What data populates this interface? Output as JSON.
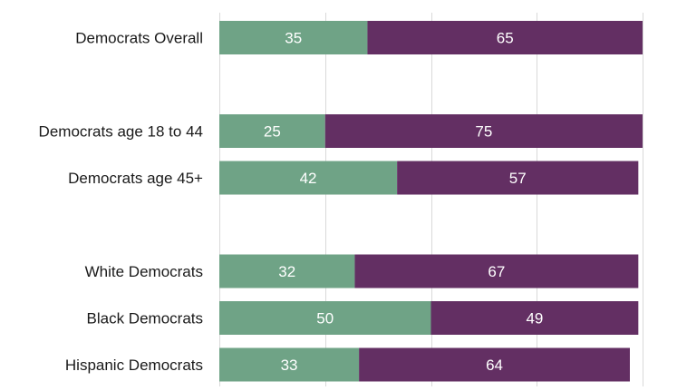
{
  "chart_data": {
    "type": "bar",
    "orientation": "horizontal",
    "stacked": true,
    "categories": [
      "Democrats Overall",
      "",
      "Democrats age 18 to 44",
      "Democrats age 45+",
      "",
      "White Democrats",
      "Black Democrats",
      "Hispanic Democrats"
    ],
    "series": [
      {
        "values": [
          35,
          null,
          25,
          42,
          null,
          32,
          50,
          33
        ],
        "color": "#6fa386"
      },
      {
        "values": [
          65,
          null,
          75,
          57,
          null,
          67,
          49,
          64
        ],
        "color": "#632f63"
      }
    ],
    "xlim": [
      0,
      100
    ],
    "grid": true,
    "legend": "none"
  }
}
